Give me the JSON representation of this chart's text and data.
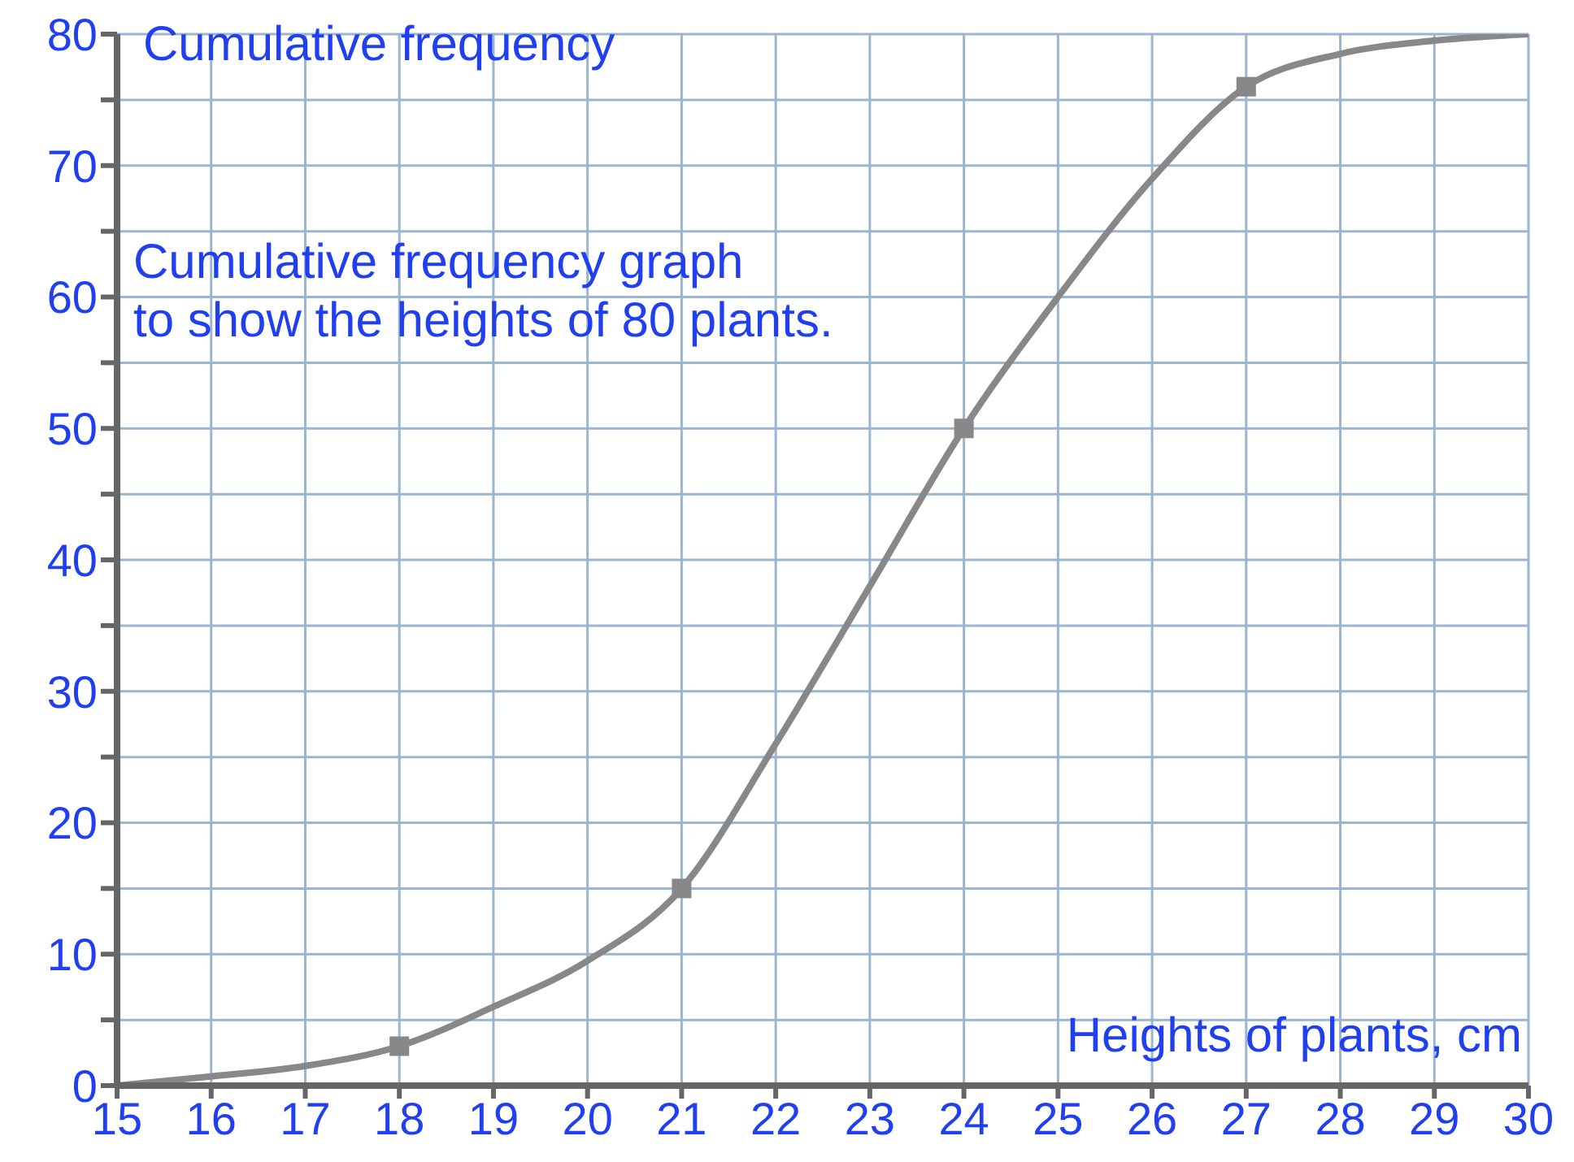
{
  "chart_data": {
    "type": "line",
    "xlabel": "Heights of plants, cm",
    "ylabel": "Cumulative frequency",
    "annotations": [
      "Cumulative frequency graph\nto show the heights of 80 plants."
    ],
    "series": [
      {
        "color": "#888888",
        "marker": "none",
        "x": [
          15,
          16,
          17,
          18,
          19,
          20,
          21,
          22,
          23,
          24,
          25,
          26,
          27,
          28,
          29,
          30
        ],
        "values": [
          0,
          0.7,
          1.5,
          3,
          6,
          9.5,
          15,
          26,
          38,
          50,
          60,
          69,
          76,
          78.5,
          79.5,
          80
        ]
      },
      {
        "type": "scatter",
        "color": "#888888",
        "marker": "square",
        "x": [
          18,
          21,
          24,
          27
        ],
        "values": [
          3,
          15,
          50,
          76
        ]
      }
    ],
    "xlim": [
      15,
      30
    ],
    "xticks": [
      15,
      16,
      17,
      18,
      19,
      20,
      21,
      22,
      23,
      24,
      25,
      26,
      27,
      28,
      29,
      30
    ],
    "ylim": [
      0,
      80
    ],
    "yticks": [
      0,
      {
        "value": 5,
        "label": null
      },
      10,
      {
        "value": 15,
        "label": null
      },
      20,
      {
        "value": 25,
        "label": null
      },
      30,
      {
        "value": 35,
        "label": null
      },
      40,
      {
        "value": 45,
        "label": null
      },
      50,
      {
        "value": 55,
        "label": null
      },
      60,
      {
        "value": 65,
        "label": null
      },
      70,
      {
        "value": 75,
        "label": null
      },
      80
    ],
    "grid": true
  }
}
